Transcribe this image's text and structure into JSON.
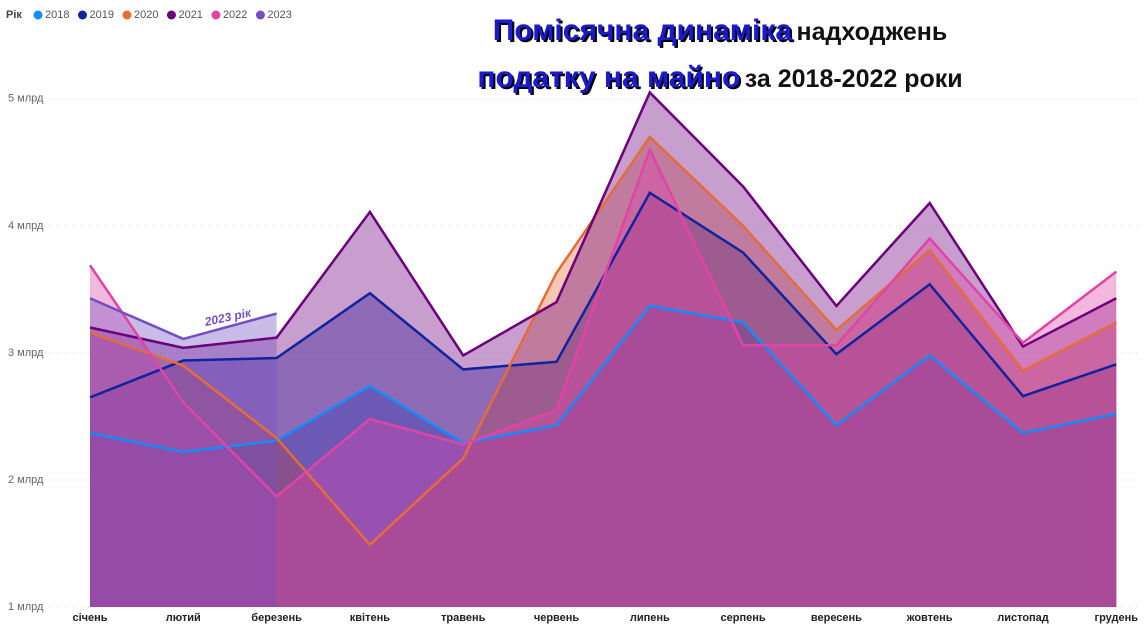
{
  "chart_data": {
    "type": "area",
    "title": [
      "Помісячна динаміка",
      "надходжень",
      "податку на майно",
      "за 2018-2022 роки"
    ],
    "legend_title": "Рік",
    "legend_position": "top-left",
    "annotation": "2023 рік",
    "categories": [
      "січень",
      "лютий",
      "березень",
      "квітень",
      "травень",
      "червень",
      "липень",
      "серпень",
      "вересень",
      "жовтень",
      "листопад",
      "грудень"
    ],
    "series": [
      {
        "name": "2018",
        "color": "#118DFF",
        "values": [
          2.37,
          2.22,
          2.31,
          2.74,
          2.29,
          2.43,
          3.37,
          3.24,
          2.43,
          2.98,
          2.37,
          2.52
        ]
      },
      {
        "name": "2019",
        "color": "#12239E",
        "values": [
          2.65,
          2.94,
          2.96,
          3.47,
          2.87,
          2.93,
          4.26,
          3.79,
          2.99,
          3.54,
          2.66,
          2.91
        ]
      },
      {
        "name": "2020",
        "color": "#E66C37",
        "values": [
          3.16,
          2.9,
          2.33,
          1.49,
          2.17,
          3.63,
          4.7,
          4.0,
          3.18,
          3.81,
          2.86,
          3.24
        ]
      },
      {
        "name": "2021",
        "color": "#6B007B",
        "values": [
          3.2,
          3.04,
          3.12,
          4.11,
          2.98,
          3.4,
          5.05,
          4.31,
          3.37,
          4.18,
          3.05,
          3.43
        ]
      },
      {
        "name": "2022",
        "color": "#E044A7",
        "values": [
          3.69,
          2.61,
          1.87,
          2.48,
          2.28,
          2.55,
          4.6,
          3.06,
          3.06,
          3.9,
          3.08,
          3.64
        ]
      },
      {
        "name": "2023",
        "color": "#744EC2",
        "values": [
          3.43,
          3.11,
          3.31,
          null,
          null,
          null,
          null,
          null,
          null,
          null,
          null,
          null
        ]
      }
    ],
    "ylim": [
      1,
      5.4
    ],
    "yticks": [
      {
        "value": 1,
        "label": "1 млрд"
      },
      {
        "value": 2,
        "label": "2 млрд"
      },
      {
        "value": 3,
        "label": "3 млрд"
      },
      {
        "value": 4,
        "label": "4 млрд"
      },
      {
        "value": 5,
        "label": "5 млрд"
      }
    ],
    "grid": true
  }
}
